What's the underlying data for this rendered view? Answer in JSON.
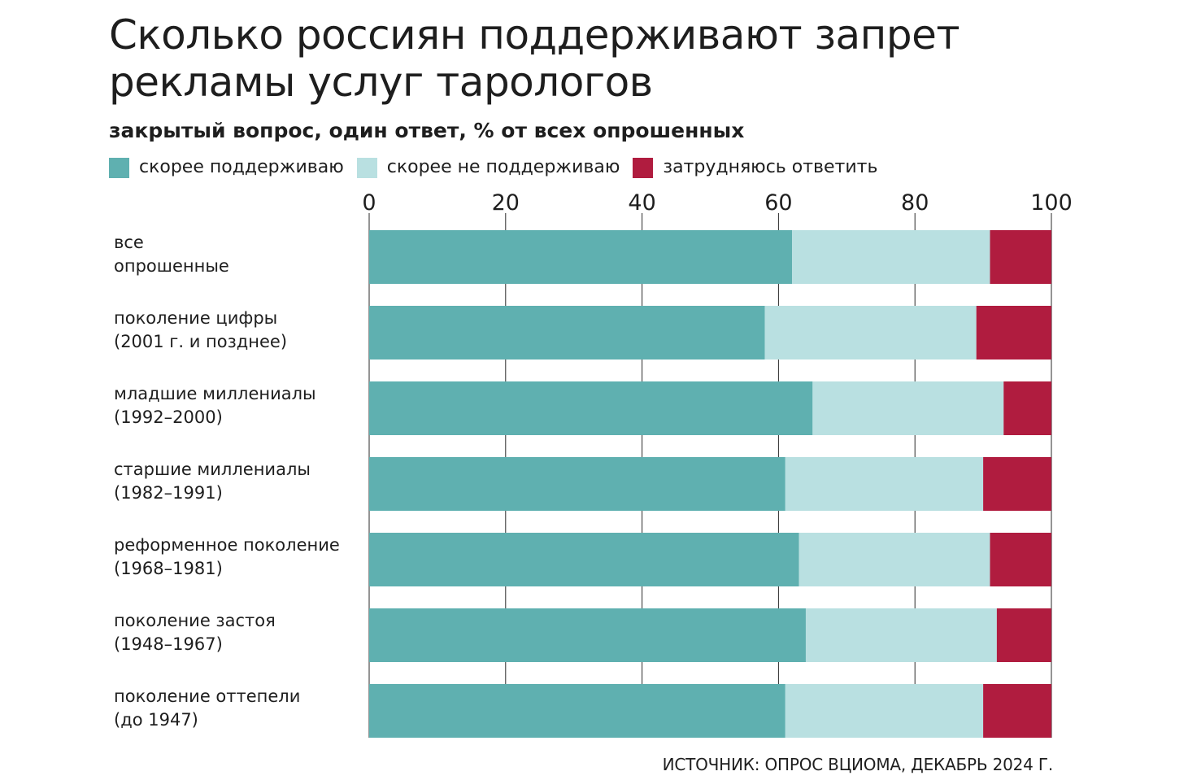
{
  "title": "Сколько россиян поддерживают запрет рекламы услуг тарологов",
  "subtitle": "закрытый вопрос, один ответ, % от всех опрошенных",
  "source": "ИСТОЧНИК: ОПРОС ВЦИОМА, ДЕКАБРЬ 2024 Г.",
  "colors": {
    "support": "#5fb0b0",
    "not_support": "#b9e0e1",
    "hard_to_say": "#b01c3f",
    "grid": "#2a2a2a"
  },
  "chart_data": {
    "type": "bar",
    "orientation": "horizontal",
    "stacked": true,
    "xlim": [
      0,
      100
    ],
    "xticks": [
      0,
      20,
      40,
      60,
      80,
      100
    ],
    "grid": true,
    "legend_position": "top-left",
    "categories": [
      [
        "все",
        "опрошенные"
      ],
      [
        "поколение цифры",
        "(2001 г. и позднее)"
      ],
      [
        "младшие миллениалы",
        "(1992–2000)"
      ],
      [
        "старшие миллениалы",
        "(1982–1991)"
      ],
      [
        "реформенное поколение",
        "(1968–1981)"
      ],
      [
        "поколение застоя",
        "(1948–1967)"
      ],
      [
        "поколение оттепели",
        "(до 1947)"
      ]
    ],
    "series": [
      {
        "name": "скорее поддерживаю",
        "values": [
          62,
          58,
          65,
          61,
          63,
          64,
          61
        ]
      },
      {
        "name": "скорее не поддерживаю",
        "values": [
          29,
          31,
          28,
          29,
          28,
          28,
          29
        ]
      },
      {
        "name": "затрудняюсь ответить",
        "values": [
          9,
          11,
          7,
          10,
          9,
          8,
          10
        ]
      }
    ]
  }
}
